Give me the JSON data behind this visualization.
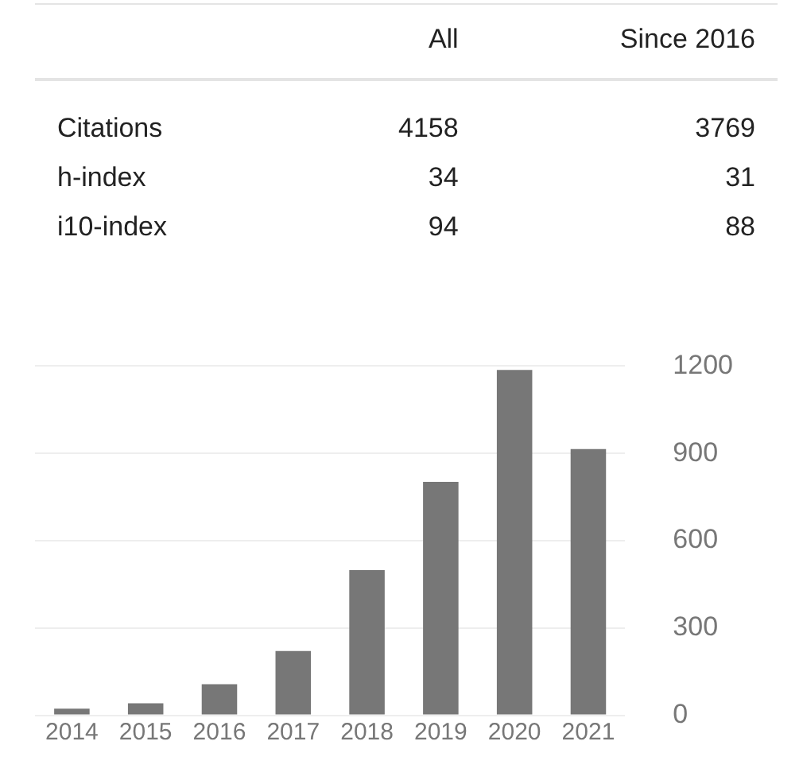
{
  "chart_data": [
    {
      "type": "other",
      "categories": [
        "Citations",
        "h-index",
        "i10-index"
      ],
      "series": [
        {
          "name": "All",
          "values": [
            4158,
            34,
            94
          ]
        },
        {
          "name": "Since 2016",
          "values": [
            3769,
            31,
            88
          ]
        }
      ],
      "data_labels": true
    },
    {
      "type": "bar",
      "categories": [
        "2014",
        "2015",
        "2016",
        "2017",
        "2018",
        "2019",
        "2020",
        "2021"
      ],
      "values": [
        23,
        41,
        107,
        221,
        499,
        802,
        1187,
        915
      ],
      "color": "#777777",
      "ylim": [
        0,
        1200
      ],
      "yticks": [
        0,
        300,
        600,
        900,
        1200
      ],
      "grid": "y"
    }
  ]
}
